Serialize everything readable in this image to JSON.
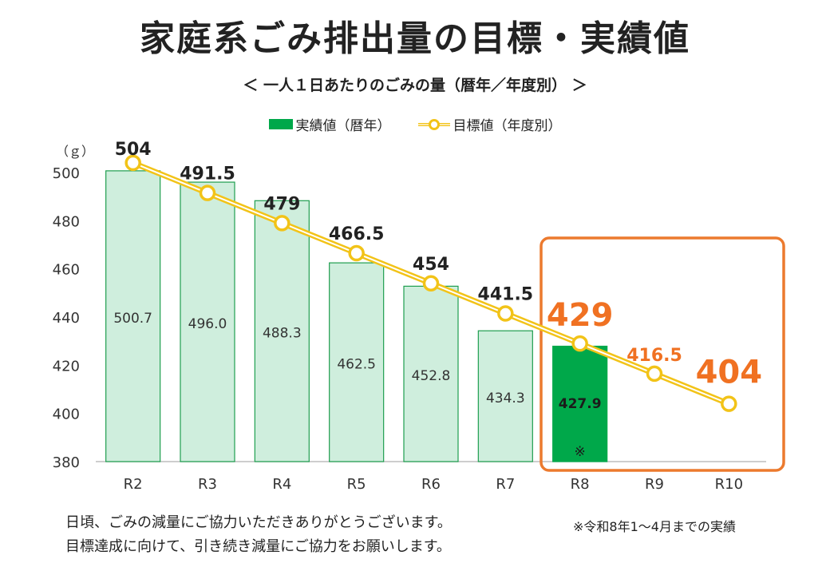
{
  "header": {
    "title": "家庭系ごみ排出量の目標・実績値",
    "subtitle": "＜ 一人１日あたりのごみの量（暦年／年度別） ＞"
  },
  "legend": {
    "bar_label": "実績値（暦年）",
    "line_label": "目標値（年度別）"
  },
  "unit_label": "（ｇ）",
  "chart_data": {
    "type": "bar",
    "categories": [
      "R2",
      "R3",
      "R4",
      "R5",
      "R6",
      "R7",
      "R8",
      "R9",
      "R10"
    ],
    "series": [
      {
        "name": "実績値（暦年）",
        "type": "bar",
        "values": [
          500.7,
          496.0,
          488.3,
          462.5,
          452.8,
          434.3,
          427.9,
          null,
          null
        ],
        "labels": [
          "500.7",
          "496.0",
          "488.3",
          "462.5",
          "452.8",
          "434.3",
          "427.9",
          "",
          ""
        ]
      },
      {
        "name": "目標値（年度別）",
        "type": "line",
        "values": [
          504,
          491.5,
          479,
          466.5,
          454,
          441.5,
          429,
          416.5,
          404
        ],
        "labels": [
          "504",
          "491.5",
          "479",
          "466.5",
          "454",
          "441.5",
          "429",
          "416.5",
          "404"
        ]
      }
    ],
    "yticks": [
      "500",
      "480",
      "460",
      "440",
      "420",
      "400",
      "380"
    ],
    "ylim": [
      380,
      510
    ],
    "bar_marker": "※",
    "colors": {
      "bar_light_fill": "#cfeedd",
      "bar_light_stroke": "#1f9e4f",
      "bar_highlight": "#00a84a",
      "line": "#f2c318",
      "highlight_label": "#f07122",
      "highlight_box": "#ec7a2e"
    }
  },
  "footer": {
    "line1": "日頃、ごみの減量にご協力いただきありがとうございます。",
    "line2": "目標達成に向けて、引き続き減量にご協力をお願いします。",
    "note": "※令和8年1～4月までの実績"
  }
}
